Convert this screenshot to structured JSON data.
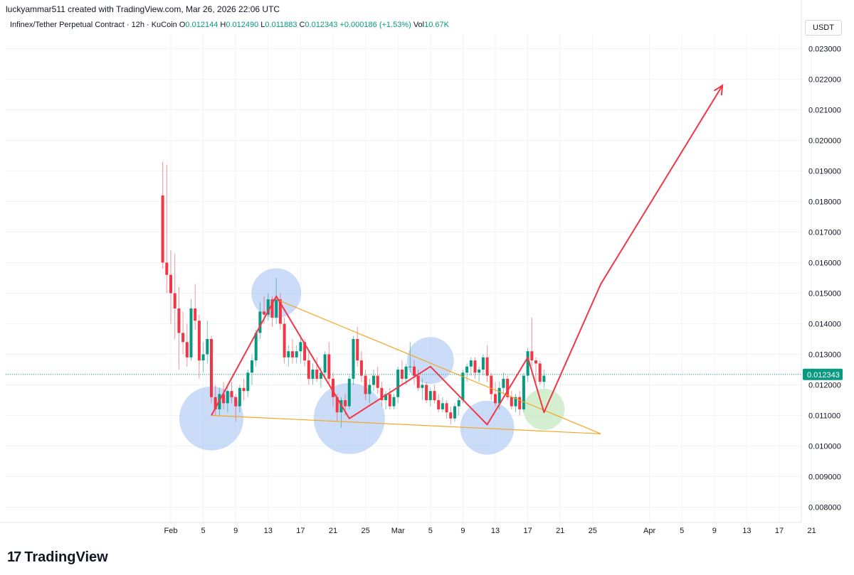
{
  "header": {
    "author_line": "luckyammar511 created with TradingView.com, Mar 26, 2026 22:06 UTC"
  },
  "symbol": {
    "name": "Infinex/Tether Perpetual Contract · 12h · KuCoin",
    "open_label": "O",
    "open": "0.012144",
    "high_label": "H",
    "high": "0.012490",
    "low_label": "L",
    "low": "0.011883",
    "close_label": "C",
    "close": "0.012343",
    "change": "+0.000186 (+1.53%)",
    "vol_label": "Vol",
    "vol": "10.67K"
  },
  "price_axis": {
    "currency": "USDT",
    "last_price_label": "0.012343"
  },
  "brand": {
    "logo_mark": "17",
    "name": "TradingView"
  },
  "colors": {
    "up": "#089981",
    "down": "#f23645",
    "drawing": "#f23645",
    "trendline": "#f5a623",
    "circle": "#a8c4f5",
    "circle_green": "#b7e4b0",
    "grid": "#f0f3fa"
  },
  "chart_data": {
    "type": "candlestick",
    "timeframe": "12h",
    "ylim": [
      0.0075,
      0.0235
    ],
    "y_ticks": [
      "0.008000",
      "0.009000",
      "0.010000",
      "0.011000",
      "0.012000",
      "0.013000",
      "0.014000",
      "0.015000",
      "0.016000",
      "0.017000",
      "0.018000",
      "0.019000",
      "0.020000",
      "0.021000",
      "0.022000",
      "0.023000"
    ],
    "x_ticks": [
      {
        "label": "Feb",
        "date": "2026-02-01"
      },
      {
        "label": "5",
        "date": "2026-02-05"
      },
      {
        "label": "9",
        "date": "2026-02-09"
      },
      {
        "label": "13",
        "date": "2026-02-13"
      },
      {
        "label": "17",
        "date": "2026-02-17"
      },
      {
        "label": "21",
        "date": "2026-02-21"
      },
      {
        "label": "25",
        "date": "2026-02-25"
      },
      {
        "label": "Mar",
        "date": "2026-03-01"
      },
      {
        "label": "5",
        "date": "2026-03-05"
      },
      {
        "label": "9",
        "date": "2026-03-09"
      },
      {
        "label": "13",
        "date": "2026-03-13"
      },
      {
        "label": "17",
        "date": "2026-03-17"
      },
      {
        "label": "21",
        "date": "2026-03-21"
      },
      {
        "label": "25",
        "date": "2026-03-25"
      },
      {
        "label": "Apr",
        "date": "2026-04-01"
      },
      {
        "label": "5",
        "date": "2026-04-05"
      },
      {
        "label": "9",
        "date": "2026-04-09"
      },
      {
        "label": "13",
        "date": "2026-04-13"
      },
      {
        "label": "17",
        "date": "2026-04-17"
      },
      {
        "label": "21",
        "date": "2026-04-21"
      }
    ],
    "first_candle": "2026-01-31T00:00",
    "candles": [
      [
        0.0182,
        0.0193,
        0.0158,
        0.016
      ],
      [
        0.016,
        0.0192,
        0.015,
        0.0156
      ],
      [
        0.0156,
        0.0164,
        0.014,
        0.015
      ],
      [
        0.015,
        0.0163,
        0.0135,
        0.0145
      ],
      [
        0.0145,
        0.0152,
        0.0125,
        0.0137
      ],
      [
        0.0137,
        0.0144,
        0.013,
        0.0134
      ],
      [
        0.0134,
        0.014,
        0.0126,
        0.0129
      ],
      [
        0.0129,
        0.0148,
        0.0128,
        0.0145
      ],
      [
        0.0145,
        0.0153,
        0.0138,
        0.0141
      ],
      [
        0.0141,
        0.0143,
        0.0122,
        0.0128
      ],
      [
        0.0128,
        0.0134,
        0.0124,
        0.013
      ],
      [
        0.013,
        0.0141,
        0.0127,
        0.0135
      ],
      [
        0.0135,
        0.0136,
        0.0114,
        0.0116
      ],
      [
        0.0116,
        0.012,
        0.011,
        0.0112
      ],
      [
        0.0112,
        0.0119,
        0.011,
        0.0117
      ],
      [
        0.0117,
        0.0121,
        0.0112,
        0.0114
      ],
      [
        0.0114,
        0.012,
        0.0111,
        0.0118
      ],
      [
        0.0118,
        0.0121,
        0.0114,
        0.0116
      ],
      [
        0.0116,
        0.0117,
        0.0108,
        0.0113
      ],
      [
        0.0113,
        0.012,
        0.0111,
        0.0119
      ],
      [
        0.0119,
        0.0122,
        0.0115,
        0.0118
      ],
      [
        0.0118,
        0.0125,
        0.0116,
        0.0124
      ],
      [
        0.0124,
        0.013,
        0.012,
        0.0128
      ],
      [
        0.0128,
        0.0138,
        0.0126,
        0.0137
      ],
      [
        0.0137,
        0.0147,
        0.0135,
        0.0144
      ],
      [
        0.0144,
        0.0149,
        0.014,
        0.0143
      ],
      [
        0.0143,
        0.015,
        0.0141,
        0.0148
      ],
      [
        0.0148,
        0.0149,
        0.0139,
        0.0142
      ],
      [
        0.0142,
        0.0155,
        0.014,
        0.0148
      ],
      [
        0.0148,
        0.015,
        0.0138,
        0.014
      ],
      [
        0.014,
        0.0142,
        0.0127,
        0.0129
      ],
      [
        0.0129,
        0.0133,
        0.0126,
        0.0131
      ],
      [
        0.0131,
        0.0135,
        0.0127,
        0.0129
      ],
      [
        0.0129,
        0.0133,
        0.0127,
        0.0131
      ],
      [
        0.0131,
        0.0136,
        0.0127,
        0.0134
      ],
      [
        0.0134,
        0.0135,
        0.0126,
        0.0128
      ],
      [
        0.0128,
        0.0131,
        0.012,
        0.0122
      ],
      [
        0.0122,
        0.0127,
        0.012,
        0.0125
      ],
      [
        0.0125,
        0.0129,
        0.0121,
        0.0122
      ],
      [
        0.0122,
        0.0126,
        0.0119,
        0.0124
      ],
      [
        0.0124,
        0.0131,
        0.0122,
        0.013
      ],
      [
        0.013,
        0.0134,
        0.012,
        0.0122
      ],
      [
        0.0122,
        0.0124,
        0.0113,
        0.0116
      ],
      [
        0.0116,
        0.0117,
        0.0108,
        0.0111
      ],
      [
        0.0111,
        0.0116,
        0.0106,
        0.0115
      ],
      [
        0.0115,
        0.0117,
        0.011,
        0.0113
      ],
      [
        0.0113,
        0.0123,
        0.0112,
        0.0122
      ],
      [
        0.0122,
        0.0136,
        0.012,
        0.0135
      ],
      [
        0.0135,
        0.0139,
        0.0126,
        0.0128
      ],
      [
        0.0128,
        0.0131,
        0.0121,
        0.0123
      ],
      [
        0.0123,
        0.0125,
        0.0115,
        0.0117
      ],
      [
        0.0117,
        0.0122,
        0.0114,
        0.012
      ],
      [
        0.012,
        0.0125,
        0.0118,
        0.0123
      ],
      [
        0.0123,
        0.0126,
        0.0117,
        0.0119
      ],
      [
        0.0119,
        0.0121,
        0.0113,
        0.0115
      ],
      [
        0.0115,
        0.0118,
        0.0112,
        0.0117
      ],
      [
        0.0117,
        0.0119,
        0.0112,
        0.0113
      ],
      [
        0.0113,
        0.0117,
        0.0112,
        0.0116
      ],
      [
        0.0116,
        0.0126,
        0.0114,
        0.0125
      ],
      [
        0.0125,
        0.0128,
        0.012,
        0.0122
      ],
      [
        0.0122,
        0.0127,
        0.012,
        0.0126
      ],
      [
        0.0126,
        0.0134,
        0.0124,
        0.0126
      ],
      [
        0.0126,
        0.0128,
        0.012,
        0.0123
      ],
      [
        0.0123,
        0.0125,
        0.0118,
        0.0119
      ],
      [
        0.0119,
        0.0122,
        0.0115,
        0.012
      ],
      [
        0.012,
        0.0121,
        0.0114,
        0.0115
      ],
      [
        0.0115,
        0.0119,
        0.0113,
        0.0118
      ],
      [
        0.0118,
        0.012,
        0.0114,
        0.0115
      ],
      [
        0.0115,
        0.0117,
        0.0111,
        0.0112
      ],
      [
        0.0112,
        0.0116,
        0.0111,
        0.0114
      ],
      [
        0.0114,
        0.0115,
        0.0109,
        0.0111
      ],
      [
        0.0111,
        0.0113,
        0.0107,
        0.0109
      ],
      [
        0.0109,
        0.0114,
        0.0108,
        0.0113
      ],
      [
        0.0113,
        0.0116,
        0.011,
        0.0115
      ],
      [
        0.0115,
        0.0125,
        0.0114,
        0.0124
      ],
      [
        0.0124,
        0.0127,
        0.0121,
        0.0126
      ],
      [
        0.0126,
        0.0129,
        0.0123,
        0.0128
      ],
      [
        0.0128,
        0.0129,
        0.0122,
        0.0124
      ],
      [
        0.0124,
        0.0126,
        0.0121,
        0.0125
      ],
      [
        0.0125,
        0.013,
        0.0123,
        0.0129
      ],
      [
        0.0129,
        0.0133,
        0.0121,
        0.0123
      ],
      [
        0.0123,
        0.0124,
        0.0115,
        0.0117
      ],
      [
        0.0117,
        0.0121,
        0.0113,
        0.0114
      ],
      [
        0.0114,
        0.0121,
        0.0112,
        0.0119
      ],
      [
        0.0119,
        0.0124,
        0.0117,
        0.0122
      ],
      [
        0.0122,
        0.0123,
        0.0115,
        0.0116
      ],
      [
        0.0116,
        0.0118,
        0.0112,
        0.0113
      ],
      [
        0.0113,
        0.0117,
        0.0111,
        0.0116
      ],
      [
        0.0116,
        0.0118,
        0.011,
        0.0112
      ],
      [
        0.0112,
        0.0124,
        0.0111,
        0.0123
      ],
      [
        0.0123,
        0.0132,
        0.0121,
        0.0131
      ],
      [
        0.0131,
        0.0142,
        0.0126,
        0.0128
      ],
      [
        0.0128,
        0.0129,
        0.0121,
        0.0127
      ],
      [
        0.0127,
        0.0128,
        0.012,
        0.0121
      ],
      [
        0.0121,
        0.0125,
        0.0119,
        0.0123
      ]
    ],
    "drawings": {
      "zigzag": [
        [
          "2026-02-06",
          0.011
        ],
        [
          "2026-02-14",
          0.0149
        ],
        [
          "2026-02-23",
          0.0109
        ],
        [
          "2026-03-05",
          0.0126
        ],
        [
          "2026-03-12",
          0.0107
        ],
        [
          "2026-03-17",
          0.0129
        ],
        [
          "2026-03-19",
          0.0111
        ],
        [
          "2026-03-26",
          0.0153
        ],
        [
          "2026-04-10",
          0.0218
        ]
      ],
      "upper_trendline": [
        [
          "2026-02-14",
          0.0148
        ],
        [
          "2026-03-26",
          0.0104
        ]
      ],
      "lower_trendline": [
        [
          "2026-02-06",
          0.011
        ],
        [
          "2026-03-26",
          0.0104
        ]
      ],
      "circles": [
        {
          "date": "2026-02-06",
          "price": 0.0109,
          "kind": "blue"
        },
        {
          "date": "2026-02-14",
          "price": 0.015,
          "kind": "blue"
        },
        {
          "date": "2026-02-23",
          "price": 0.0109,
          "kind": "blue"
        },
        {
          "date": "2026-03-05",
          "price": 0.0128,
          "kind": "blue"
        },
        {
          "date": "2026-03-12",
          "price": 0.0106,
          "kind": "blue"
        },
        {
          "date": "2026-03-19",
          "price": 0.0112,
          "kind": "green"
        }
      ]
    }
  }
}
